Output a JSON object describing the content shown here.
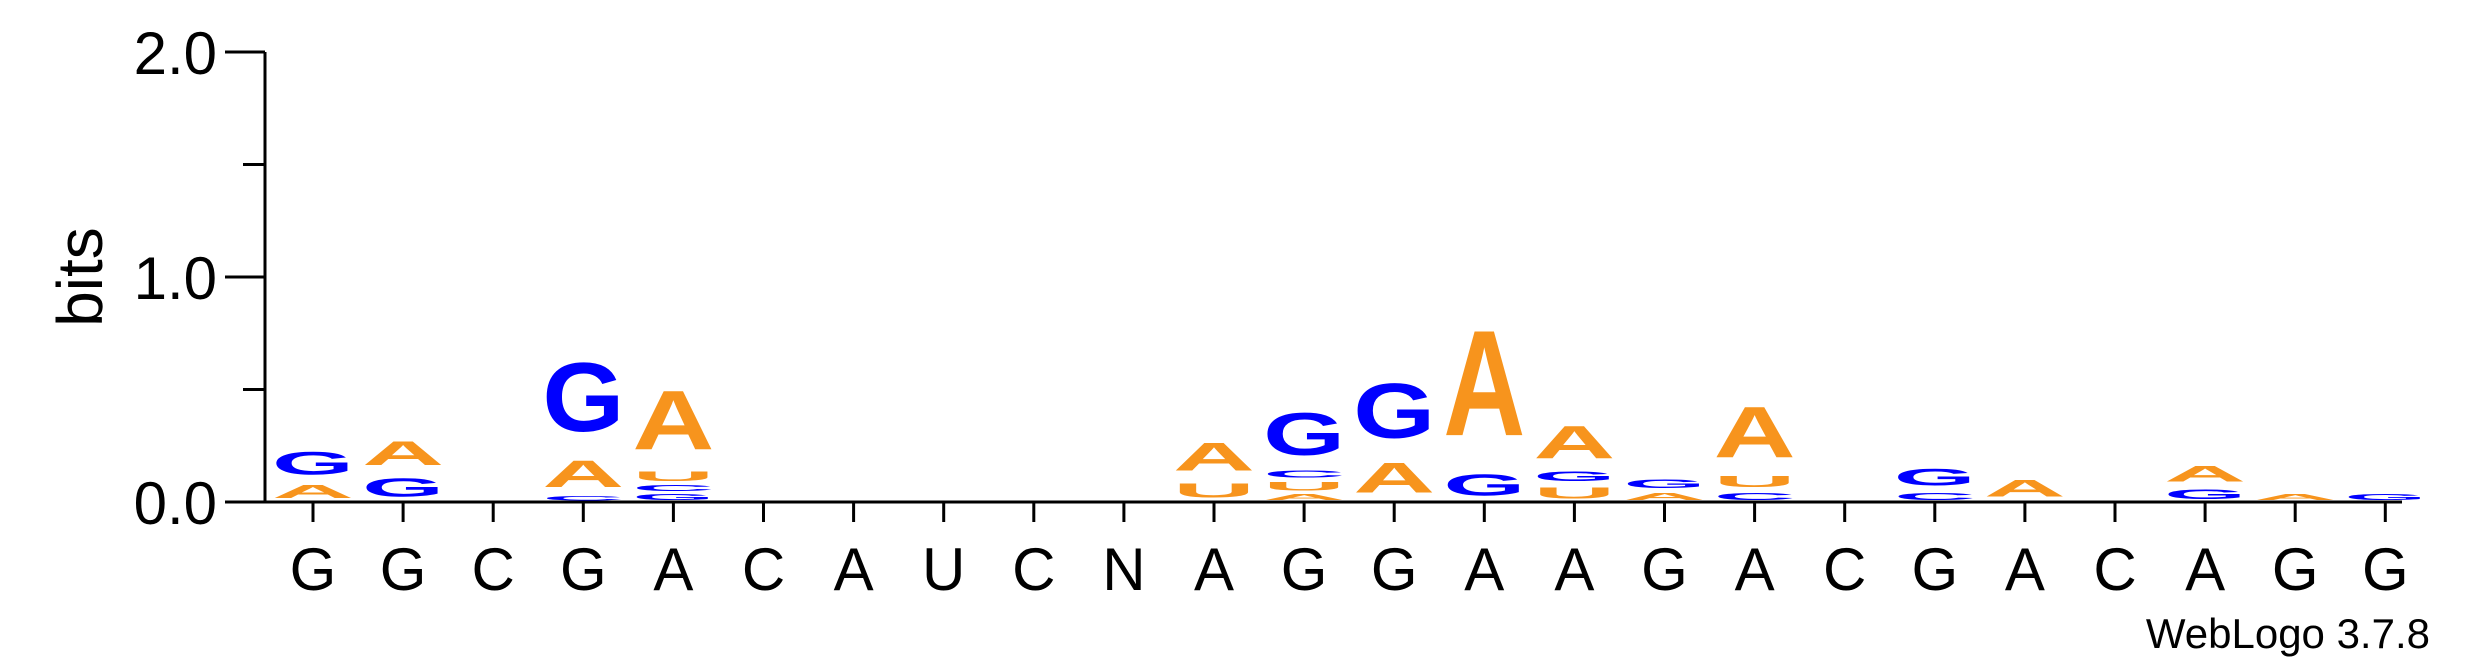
{
  "chart_data": {
    "type": "sequence-logo",
    "ylabel": "bits",
    "ylim": [
      0,
      2.0
    ],
    "yticks": [
      "0.0",
      "1.0",
      "2.0"
    ],
    "credit": "WebLogo 3.7.8",
    "colors": {
      "A": "#f7941d",
      "U": "#f7941d",
      "G": "#0000ff",
      "C": "#0000ff"
    },
    "positions": [
      {
        "label": "G",
        "stack": [
          [
            "A",
            0.09
          ],
          [
            "G",
            0.16
          ]
        ]
      },
      {
        "label": "G",
        "stack": [
          [
            "G",
            0.13
          ],
          [
            "A",
            0.17
          ]
        ]
      },
      {
        "label": "C",
        "stack": []
      },
      {
        "label": "G",
        "stack": [
          [
            "C",
            0.03
          ],
          [
            "A",
            0.19
          ],
          [
            "G",
            0.49
          ]
        ]
      },
      {
        "label": "A",
        "stack": [
          [
            "G",
            0.04
          ],
          [
            "C",
            0.04
          ],
          [
            "U",
            0.07
          ],
          [
            "A",
            0.42
          ]
        ]
      },
      {
        "label": "C",
        "stack": []
      },
      {
        "label": "A",
        "stack": []
      },
      {
        "label": "U",
        "stack": []
      },
      {
        "label": "C",
        "stack": []
      },
      {
        "label": "N",
        "stack": []
      },
      {
        "label": "A",
        "stack": [
          [
            "U",
            0.1
          ],
          [
            "A",
            0.2
          ]
        ]
      },
      {
        "label": "G",
        "stack": [
          [
            "A",
            0.04
          ],
          [
            "U",
            0.06
          ],
          [
            "C",
            0.05
          ],
          [
            "G",
            0.3
          ]
        ]
      },
      {
        "label": "G",
        "stack": [
          [
            "A",
            0.21
          ],
          [
            "G",
            0.39
          ]
        ]
      },
      {
        "label": "A",
        "stack": [
          [
            "G",
            0.15
          ],
          [
            "A",
            0.75
          ]
        ]
      },
      {
        "label": "A",
        "stack": [
          [
            "U",
            0.08
          ],
          [
            "G",
            0.07
          ],
          [
            "A",
            0.23
          ]
        ]
      },
      {
        "label": "G",
        "stack": [
          [
            "A",
            0.05
          ],
          [
            "G",
            0.06
          ]
        ]
      },
      {
        "label": "A",
        "stack": [
          [
            "C",
            0.05
          ],
          [
            "U",
            0.08
          ],
          [
            "A",
            0.36
          ]
        ]
      },
      {
        "label": "C",
        "stack": []
      },
      {
        "label": "G",
        "stack": [
          [
            "C",
            0.05
          ],
          [
            "G",
            0.12
          ]
        ]
      },
      {
        "label": "A",
        "stack": [
          [
            "A",
            0.12
          ]
        ]
      },
      {
        "label": "C",
        "stack": []
      },
      {
        "label": "A",
        "stack": [
          [
            "G",
            0.07
          ],
          [
            "A",
            0.11
          ]
        ]
      },
      {
        "label": "G",
        "stack": [
          [
            "A",
            0.04
          ]
        ]
      },
      {
        "label": "G",
        "stack": [
          [
            "G",
            0.04
          ]
        ]
      }
    ]
  }
}
